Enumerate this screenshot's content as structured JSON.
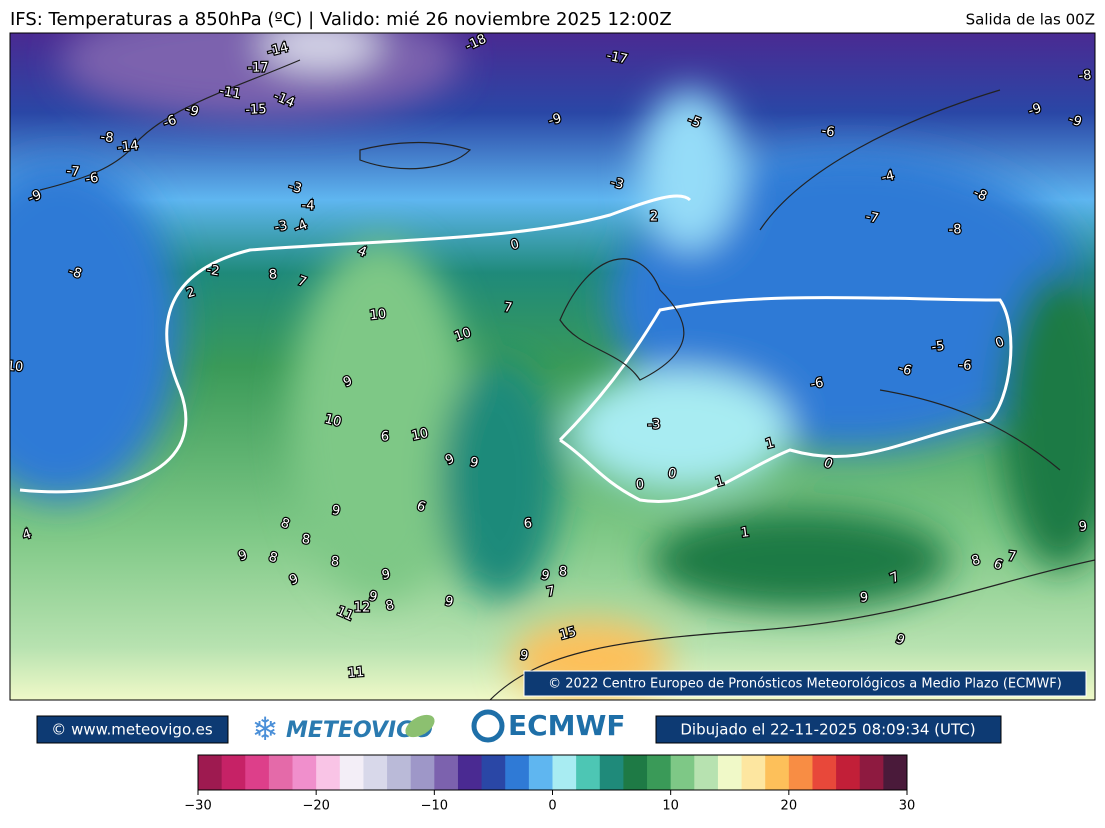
{
  "header": {
    "title": "IFS: Temperaturas a 850hPa  (ºC) | Valido: mié 26 noviembre 2025 12:00Z",
    "run": "Salida de las 00Z"
  },
  "map": {
    "copyright": "© 2022 Centro Europeo de Pronósticos Meteorológicos a Medio Plazo (ECMWF)",
    "contour_labels": [
      -18,
      -17,
      -17,
      -14,
      -14,
      -11,
      -15,
      -9,
      -5,
      -6,
      -8,
      -9,
      -9,
      -8,
      -14,
      -6,
      -9,
      -7,
      -6,
      -9,
      -3,
      -4,
      -3,
      -4,
      -3,
      2,
      -4,
      -8,
      -7,
      -8,
      0,
      4,
      -2,
      8,
      2,
      7,
      7,
      10,
      10,
      -8,
      10,
      -5,
      0,
      -6,
      -6,
      -6,
      9,
      10,
      6,
      10,
      9,
      9,
      -3,
      1,
      0,
      0,
      0,
      1,
      6,
      9,
      6,
      4,
      8,
      8,
      1,
      9,
      8,
      8,
      9,
      9,
      9,
      8,
      7,
      7,
      9,
      12,
      8,
      11,
      9,
      9,
      15,
      9,
      9,
      11,
      8,
      6,
      7,
      9
    ]
  },
  "footer": {
    "website": "© www.meteovigo.es",
    "meteovigo": "METEOVIGO",
    "ecmwf": "ECMWF",
    "drawn": "Dibujado el 22-11-2025 08:09:34 (UTC)"
  },
  "colorbar": {
    "lim": [
      -30,
      30
    ],
    "ticks": [
      {
        "value": -30,
        "label": "−30"
      },
      {
        "value": -20,
        "label": "−20"
      },
      {
        "value": -10,
        "label": "−10"
      },
      0,
      10,
      20,
      30
    ],
    "colors": [
      "#9e1a50",
      "#c62266",
      "#dd3f8a",
      "#e46aa9",
      "#f08fcc",
      "#f9c4e6",
      "#f3eef7",
      "#d8d8ea",
      "#babad8",
      "#9e97c8",
      "#7c62ae",
      "#4a2a92",
      "#2a47a6",
      "#2f7ad6",
      "#5fb6f0",
      "#a8ecf2",
      "#4dc6b4",
      "#1f8a7a",
      "#1e7a45",
      "#3a9a58",
      "#7ec886",
      "#b7e2b0",
      "#f0f9c8",
      "#fde6a0",
      "#fdc05a",
      "#f88d44",
      "#e8483a",
      "#c21f38",
      "#8e1a40",
      "#4a1a3a"
    ]
  }
}
